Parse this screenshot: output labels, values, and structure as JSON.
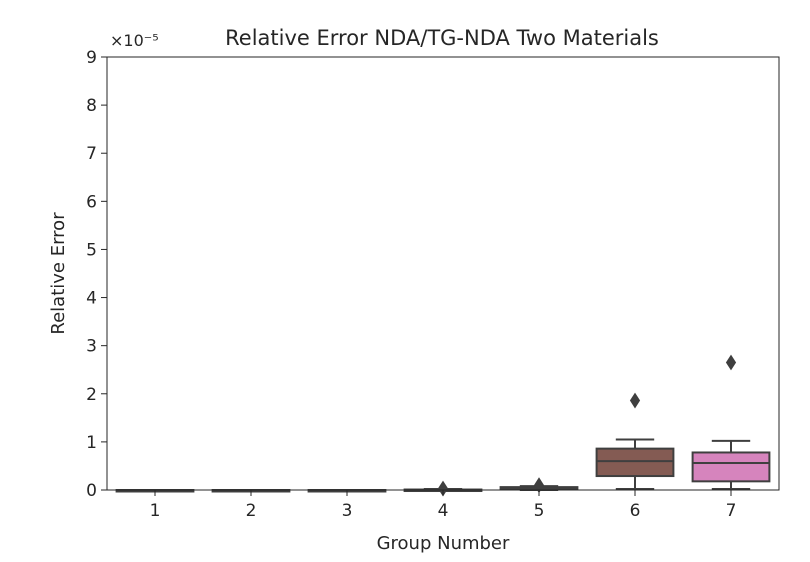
{
  "chart_data": {
    "type": "box",
    "title": "Relative Error NDA/TG-NDA Two Materials",
    "multiplier_label": "×10⁻⁵",
    "xlabel": "Group Number",
    "ylabel": "Relative Error",
    "ylim": [
      0,
      9
    ],
    "yticks": [
      "0",
      "1",
      "2",
      "3",
      "4",
      "5",
      "6",
      "7",
      "8",
      "9"
    ],
    "grid": false,
    "legend": "none",
    "categories": [
      "1",
      "2",
      "3",
      "4",
      "5",
      "6",
      "7"
    ],
    "boxes": [
      {
        "group": "1",
        "whisker_low": 0.0,
        "q1": 0.0,
        "median": 0.0,
        "q3": 0.0,
        "whisker_high": 0.0,
        "outliers": []
      },
      {
        "group": "2",
        "whisker_low": 0.0,
        "q1": 0.0,
        "median": 0.0,
        "q3": 0.0,
        "whisker_high": 0.0,
        "outliers": []
      },
      {
        "group": "3",
        "whisker_low": 0.0,
        "q1": 0.0,
        "median": 0.0,
        "q3": 0.0,
        "whisker_high": 0.0,
        "outliers": []
      },
      {
        "group": "4",
        "whisker_low": 0.0,
        "q1": 0.0,
        "median": 0.0,
        "q3": 0.01,
        "whisker_high": 0.02,
        "outliers": [
          0.03
        ]
      },
      {
        "group": "5",
        "whisker_low": 0.0,
        "q1": 0.02,
        "median": 0.04,
        "q3": 0.06,
        "whisker_high": 0.08,
        "outliers": [
          0.1
        ]
      },
      {
        "group": "6",
        "whisker_low": 0.02,
        "q1": 0.29,
        "median": 0.6,
        "q3": 0.86,
        "whisker_high": 1.05,
        "outliers": [
          1.86
        ]
      },
      {
        "group": "7",
        "whisker_low": 0.02,
        "q1": 0.18,
        "median": 0.56,
        "q3": 0.78,
        "whisker_high": 1.02,
        "outliers": [
          2.65
        ]
      }
    ],
    "colors": [
      "#3274a1",
      "#e1812c",
      "#3a923a",
      "#c03d3e",
      "#9372b2",
      "#845b53",
      "#d684bd"
    ],
    "line_color": "#3f3f3f"
  }
}
